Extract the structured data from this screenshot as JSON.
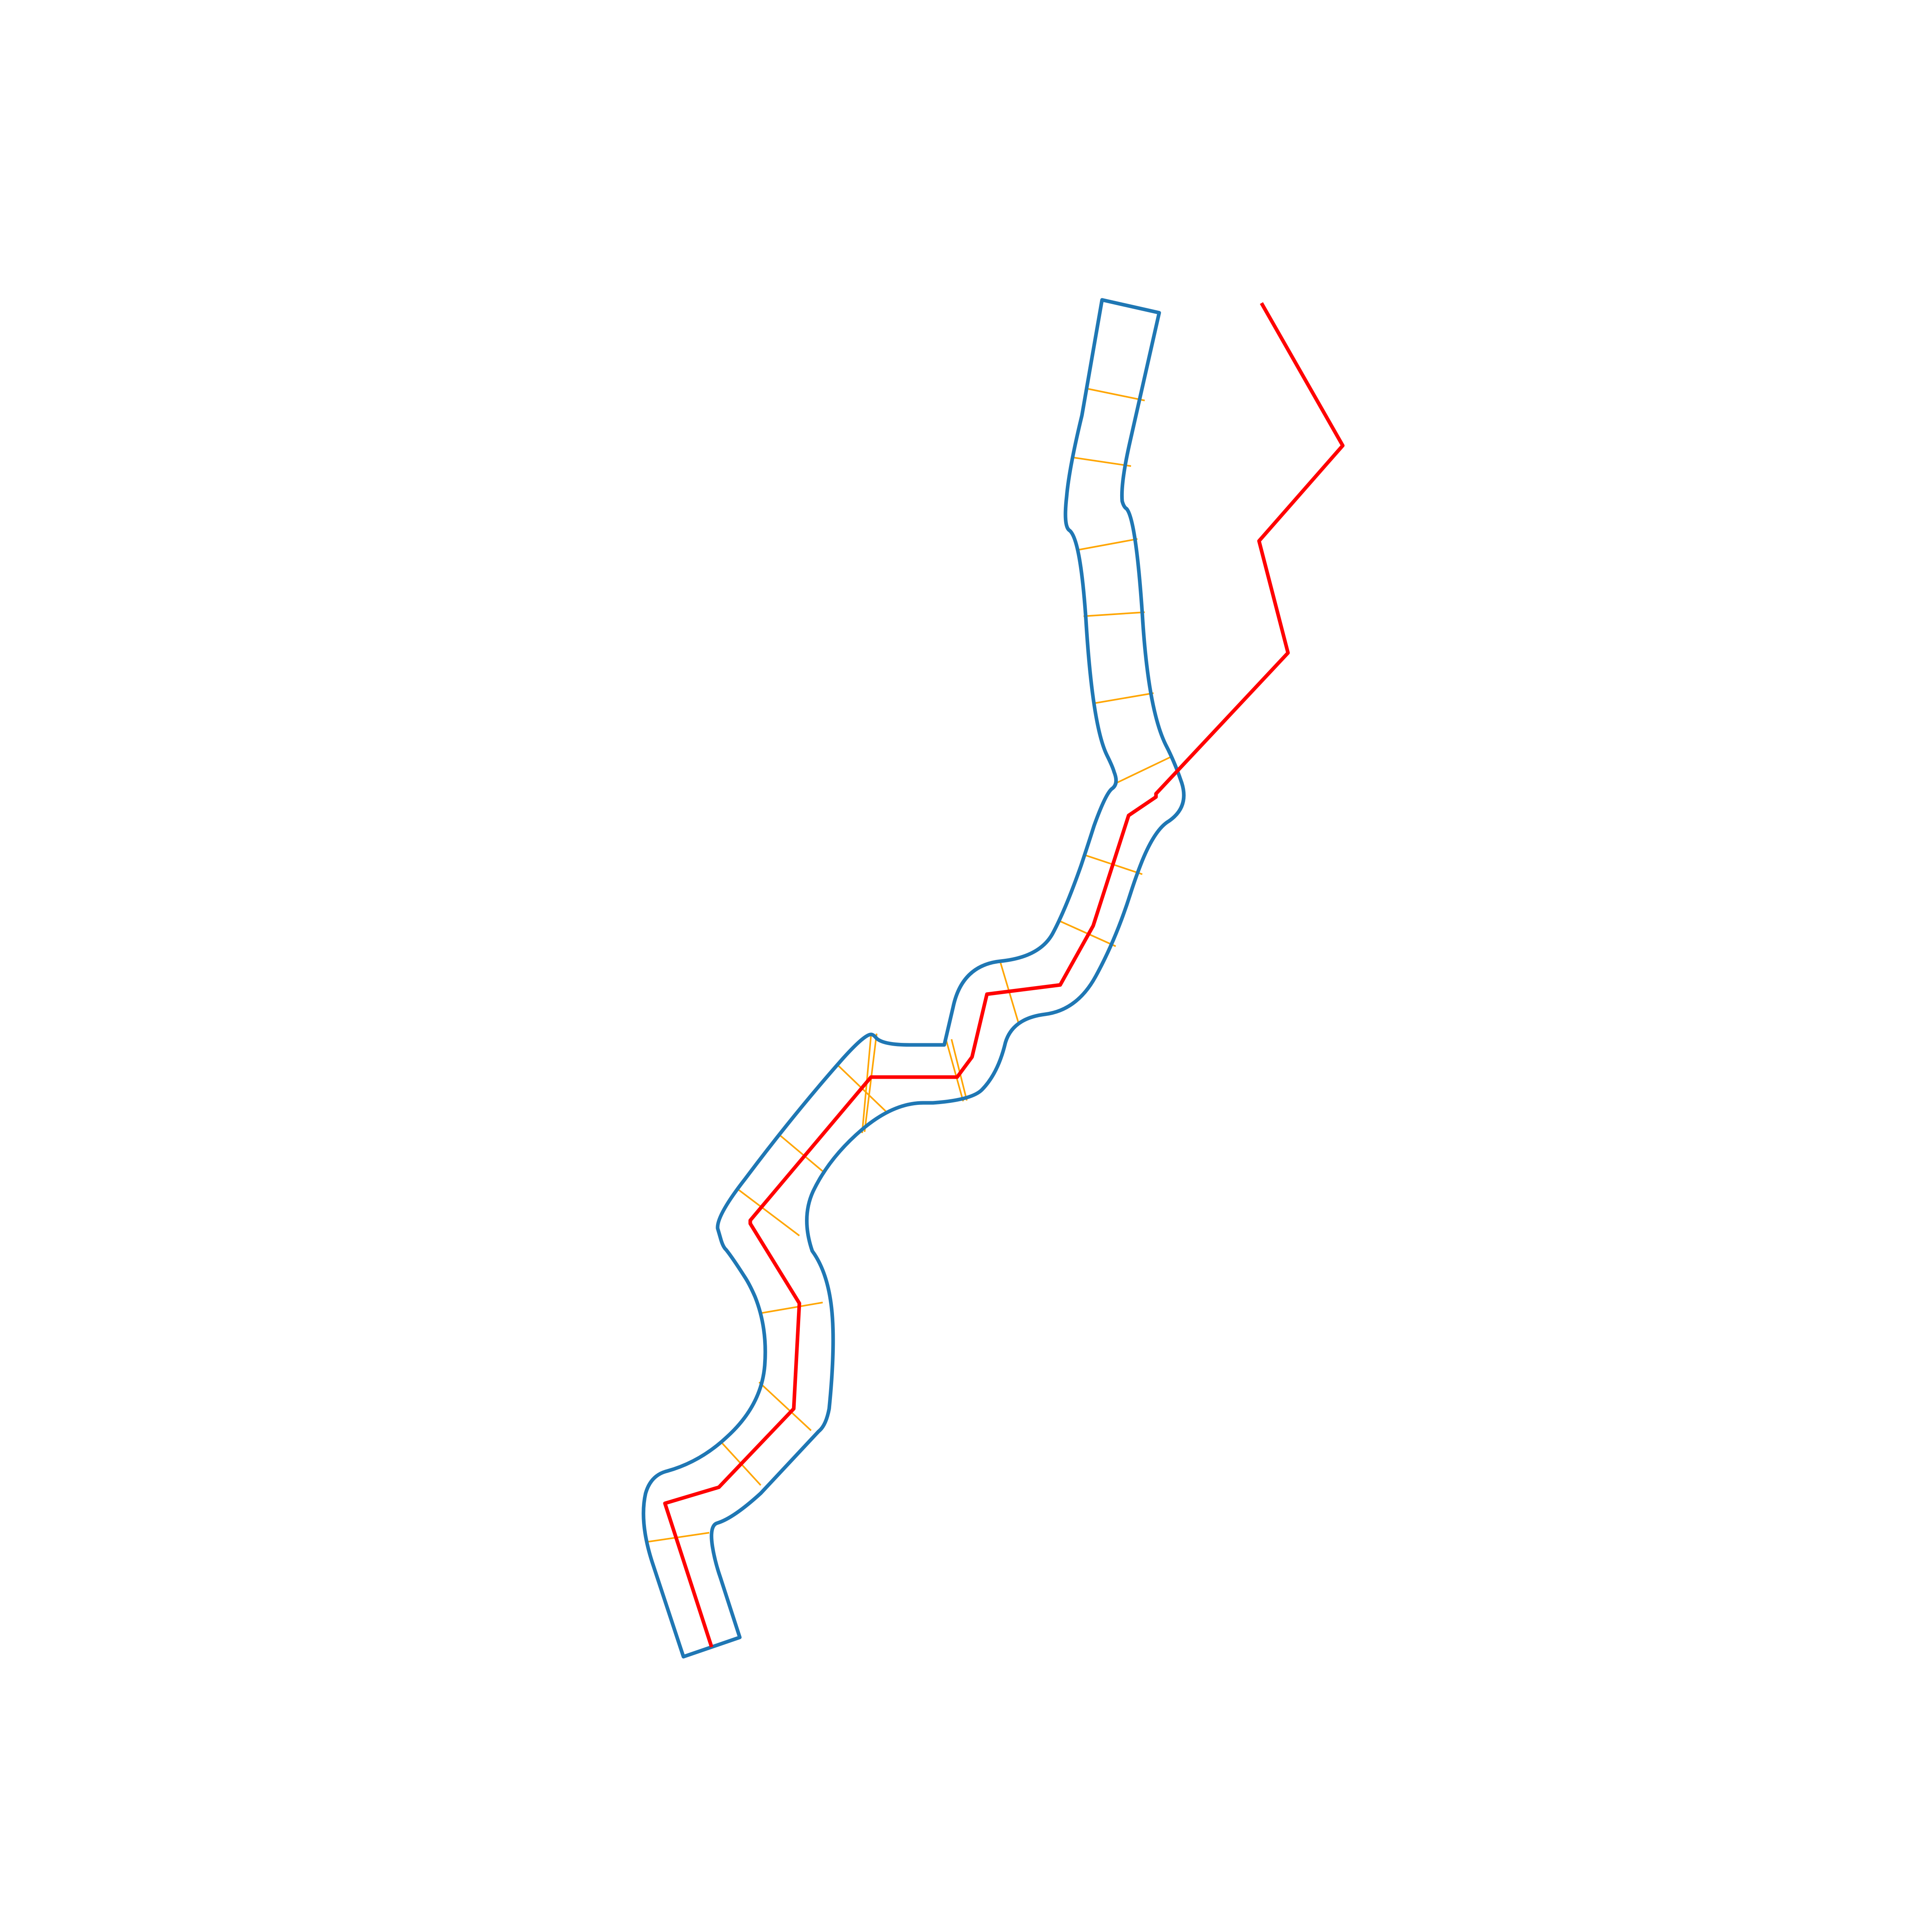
{
  "figure": {
    "colors": {
      "outline": "#1f77b4",
      "centerline": "#ff0000",
      "crosslines": "#ffa500",
      "background": "#ffffff"
    },
    "layers": [
      {
        "name": "channel-outline",
        "color_key": "outline"
      },
      {
        "name": "cross-section-lines",
        "color_key": "crosslines"
      },
      {
        "name": "centerline",
        "color_key": "centerline"
      }
    ]
  }
}
